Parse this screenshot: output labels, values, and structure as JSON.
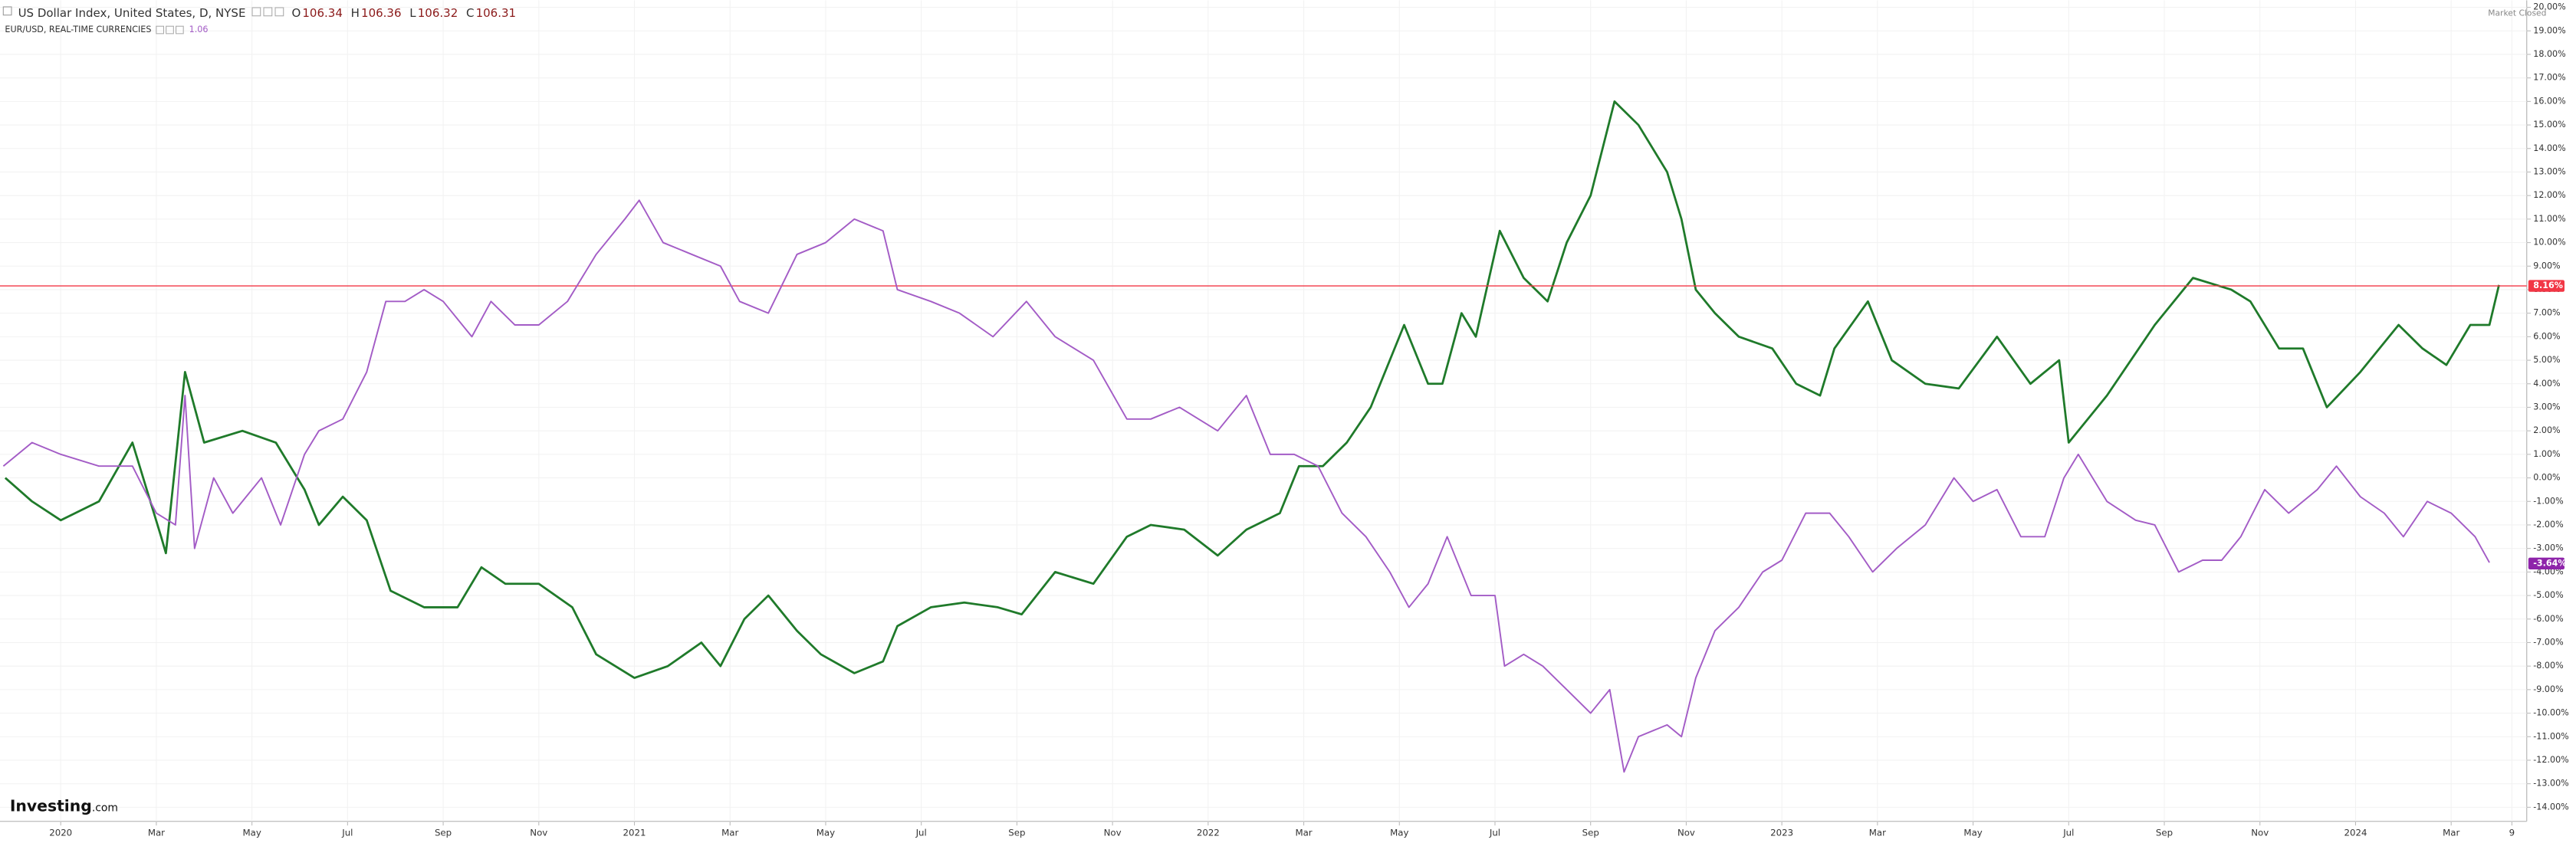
{
  "chart_data": {
    "type": "line",
    "header": {
      "symbol": "US Dollar Index, United States, D, NYSE",
      "ohlc": [
        {
          "key": "O",
          "value": "106.34"
        },
        {
          "key": "H",
          "value": "106.36"
        },
        {
          "key": "L",
          "value": "106.32"
        },
        {
          "key": "C",
          "value": "106.31"
        }
      ],
      "compare_symbol": "EUR/USD, REAL-TIME CURRENCIES",
      "compare_value": "1.06",
      "status": "Market Closed",
      "brand": "Investing",
      "brand_suffix": ".com"
    },
    "xlim": [
      -1.27,
      51.58
    ],
    "xticks": [
      {
        "value": 0,
        "label": "2020"
      },
      {
        "value": 2,
        "label": "Mar"
      },
      {
        "value": 4,
        "label": "May"
      },
      {
        "value": 6,
        "label": "Jul"
      },
      {
        "value": 8,
        "label": "Sep"
      },
      {
        "value": 10,
        "label": "Nov"
      },
      {
        "value": 12,
        "label": "2021"
      },
      {
        "value": 14,
        "label": "Mar"
      },
      {
        "value": 16,
        "label": "May"
      },
      {
        "value": 18,
        "label": "Jul"
      },
      {
        "value": 20,
        "label": "Sep"
      },
      {
        "value": 22,
        "label": "Nov"
      },
      {
        "value": 24,
        "label": "2022"
      },
      {
        "value": 26,
        "label": "Mar"
      },
      {
        "value": 28,
        "label": "May"
      },
      {
        "value": 30,
        "label": "Jul"
      },
      {
        "value": 32,
        "label": "Sep"
      },
      {
        "value": 34,
        "label": "Nov"
      },
      {
        "value": 36,
        "label": "2023"
      },
      {
        "value": 38,
        "label": "Mar"
      },
      {
        "value": 40,
        "label": "May"
      },
      {
        "value": 42,
        "label": "Jul"
      },
      {
        "value": 44,
        "label": "Sep"
      },
      {
        "value": 46,
        "label": "Nov"
      },
      {
        "value": 48,
        "label": "2024"
      },
      {
        "value": 50,
        "label": "Mar"
      },
      {
        "value": 51.27,
        "label": "9"
      }
    ],
    "ylim": [
      -14.6,
      20.3
    ],
    "yticks": [
      {
        "value": 20,
        "label": "20.00%"
      },
      {
        "value": 19,
        "label": "19.00%"
      },
      {
        "value": 18,
        "label": "18.00%"
      },
      {
        "value": 17,
        "label": "17.00%"
      },
      {
        "value": 16,
        "label": "16.00%"
      },
      {
        "value": 15,
        "label": "15.00%"
      },
      {
        "value": 14,
        "label": "14.00%"
      },
      {
        "value": 13,
        "label": "13.00%"
      },
      {
        "value": 12,
        "label": "12.00%"
      },
      {
        "value": 11,
        "label": "11.00%"
      },
      {
        "value": 10,
        "label": "10.00%"
      },
      {
        "value": 9,
        "label": "9.00%"
      },
      {
        "value": 8,
        "label": "8.00%"
      },
      {
        "value": 7,
        "label": "7.00%"
      },
      {
        "value": 6,
        "label": "6.00%"
      },
      {
        "value": 5,
        "label": "5.00%"
      },
      {
        "value": 4,
        "label": "4.00%"
      },
      {
        "value": 3,
        "label": "3.00%"
      },
      {
        "value": 2,
        "label": "2.00%"
      },
      {
        "value": 1,
        "label": "1.00%"
      },
      {
        "value": 0,
        "label": "0.00%"
      },
      {
        "value": -1,
        "label": "-1.00%"
      },
      {
        "value": -2,
        "label": "-2.00%"
      },
      {
        "value": -3,
        "label": "-3.00%"
      },
      {
        "value": -4,
        "label": "-4.00%"
      },
      {
        "value": -5,
        "label": "-5.00%"
      },
      {
        "value": -6,
        "label": "-6.00%"
      },
      {
        "value": -7,
        "label": "-7.00%"
      },
      {
        "value": -8,
        "label": "-8.00%"
      },
      {
        "value": -9,
        "label": "-9.00%"
      },
      {
        "value": -10,
        "label": "-10.00%"
      },
      {
        "value": -11,
        "label": "-11.00%"
      },
      {
        "value": -12,
        "label": "-12.00%"
      },
      {
        "value": -13,
        "label": "-13.00%"
      },
      {
        "value": -14,
        "label": "-14.00%"
      }
    ],
    "grid": true,
    "series": [
      {
        "name": "US Dollar Index",
        "color": "#1f7a2a",
        "last": {
          "value": 8.16,
          "label": "8.16%"
        },
        "last_color": "#f23645",
        "x": [
          -1.16,
          -0.6,
          0,
          0.8,
          1.5,
          2.1,
          2.2,
          2.6,
          3.0,
          3.8,
          4.5,
          5.1,
          5.4,
          5.9,
          6.4,
          6.9,
          7.6,
          8.3,
          8.8,
          9.3,
          10,
          10.7,
          11.2,
          12,
          12.7,
          13.4,
          13.8,
          14.3,
          14.8,
          15.4,
          15.9,
          16.6,
          17.2,
          17.5,
          18.2,
          18.9,
          19.6,
          20.1,
          20.8,
          21.6,
          22.3,
          22.8,
          23.5,
          24.2,
          24.8,
          25.5,
          25.9,
          26.4,
          26.9,
          27.4,
          28.1,
          28.6,
          28.9,
          29.3,
          29.6,
          30.1,
          30.6,
          31.1,
          31.5,
          32,
          32.5,
          33,
          33.6,
          33.9,
          34.2,
          34.6,
          35.1,
          35.8,
          36.3,
          36.8,
          37.1,
          37.8,
          38.3,
          39.0,
          39.7,
          40.5,
          41.2,
          41.8,
          42.0,
          42.8,
          43.8,
          44.6,
          45.4,
          45.8,
          46.4,
          46.9,
          47.4,
          48.1,
          48.9,
          49.4,
          49.9,
          50.4,
          50.8,
          51.0
        ],
        "values": [
          0,
          -1.0,
          -1.8,
          -1.0,
          1.5,
          -2.5,
          -3.2,
          4.5,
          1.5,
          2.0,
          1.5,
          -0.5,
          -2.0,
          -0.8,
          -1.8,
          -4.8,
          -5.5,
          -5.5,
          -3.8,
          -4.5,
          -4.5,
          -5.5,
          -7.5,
          -8.5,
          -8.0,
          -7.0,
          -8.0,
          -6.0,
          -5.0,
          -6.5,
          -7.5,
          -8.3,
          -7.8,
          -6.3,
          -5.5,
          -5.3,
          -5.5,
          -5.8,
          -4.0,
          -4.5,
          -2.5,
          -2.0,
          -2.2,
          -3.3,
          -2.2,
          -1.5,
          0.5,
          0.5,
          1.5,
          3.0,
          6.5,
          4.0,
          4.0,
          7.0,
          6.0,
          10.5,
          8.5,
          7.5,
          10.0,
          12.0,
          16.0,
          15.0,
          13.0,
          11.0,
          8.0,
          7.0,
          6.0,
          5.5,
          4.0,
          3.5,
          5.5,
          7.5,
          5.0,
          4.0,
          3.8,
          6.0,
          4.0,
          5.0,
          1.5,
          3.5,
          6.5,
          8.5,
          8.0,
          7.5,
          5.5,
          5.5,
          3.0,
          4.5,
          6.5,
          5.5,
          4.8,
          6.5,
          6.5,
          8.2
        ]
      },
      {
        "name": "EUR/USD",
        "color": "#a35cc6",
        "last": {
          "value": -3.64,
          "label": "-3.64%"
        },
        "last_color": "#8e24aa",
        "x": [
          -1.2,
          -0.6,
          0,
          0.8,
          1.5,
          2.0,
          2.4,
          2.6,
          2.8,
          3.2,
          3.6,
          4.2,
          4.6,
          5.1,
          5.4,
          5.9,
          6.4,
          6.8,
          7.2,
          7.6,
          8.0,
          8.6,
          9.0,
          9.5,
          10,
          10.6,
          11.2,
          11.8,
          12.1,
          12.6,
          13.2,
          13.8,
          14.2,
          14.8,
          15.4,
          16.0,
          16.6,
          17.2,
          17.5,
          18.2,
          18.8,
          19.5,
          20.2,
          20.8,
          21.6,
          22.3,
          22.8,
          23.4,
          24.2,
          24.8,
          25.3,
          25.8,
          26.3,
          26.8,
          27.3,
          27.8,
          28.2,
          28.6,
          29.0,
          29.5,
          30.0,
          30.2,
          30.6,
          31.0,
          31.5,
          32.0,
          32.4,
          32.7,
          33.0,
          33.6,
          33.9,
          34.2,
          34.6,
          35.1,
          35.6,
          36.0,
          36.5,
          37.0,
          37.4,
          37.9,
          38.4,
          39.0,
          39.6,
          40.0,
          40.5,
          41.0,
          41.5,
          41.9,
          42.2,
          42.8,
          43.4,
          43.8,
          44.3,
          44.8,
          45.2,
          45.6,
          46.1,
          46.6,
          47.2,
          47.6,
          48.1,
          48.6,
          49.0,
          49.5,
          50.0,
          50.5,
          50.8
        ],
        "values": [
          0.5,
          1.5,
          1.0,
          0.5,
          0.5,
          -1.5,
          -2.0,
          3.5,
          -3.0,
          0,
          -1.5,
          0,
          -2.0,
          1.0,
          2.0,
          2.5,
          4.5,
          7.5,
          7.5,
          8.0,
          7.5,
          6.0,
          7.5,
          6.5,
          6.5,
          7.5,
          9.5,
          11.0,
          11.8,
          10.0,
          9.5,
          9.0,
          7.5,
          7.0,
          9.5,
          10.0,
          11.0,
          10.5,
          8.0,
          7.5,
          7.0,
          6.0,
          7.5,
          6.0,
          5.0,
          2.5,
          2.5,
          3.0,
          2.0,
          3.5,
          1.0,
          1.0,
          0.5,
          -1.5,
          -2.5,
          -4.0,
          -5.5,
          -4.5,
          -2.5,
          -5.0,
          -5.0,
          -8.0,
          -7.5,
          -8.0,
          -9.0,
          -10.0,
          -9.0,
          -12.5,
          -11.0,
          -10.5,
          -11.0,
          -8.5,
          -6.5,
          -5.5,
          -4.0,
          -3.5,
          -1.5,
          -1.5,
          -2.5,
          -4.0,
          -3.0,
          -2.0,
          0,
          -1.0,
          -0.5,
          -2.5,
          -2.5,
          0,
          1.0,
          -1.0,
          -1.8,
          -2.0,
          -4.0,
          -3.5,
          -3.5,
          -2.5,
          -0.5,
          -1.5,
          -0.5,
          0.5,
          -0.8,
          -1.5,
          -2.5,
          -1.0,
          -1.5,
          -2.5,
          -3.6
        ]
      }
    ]
  }
}
